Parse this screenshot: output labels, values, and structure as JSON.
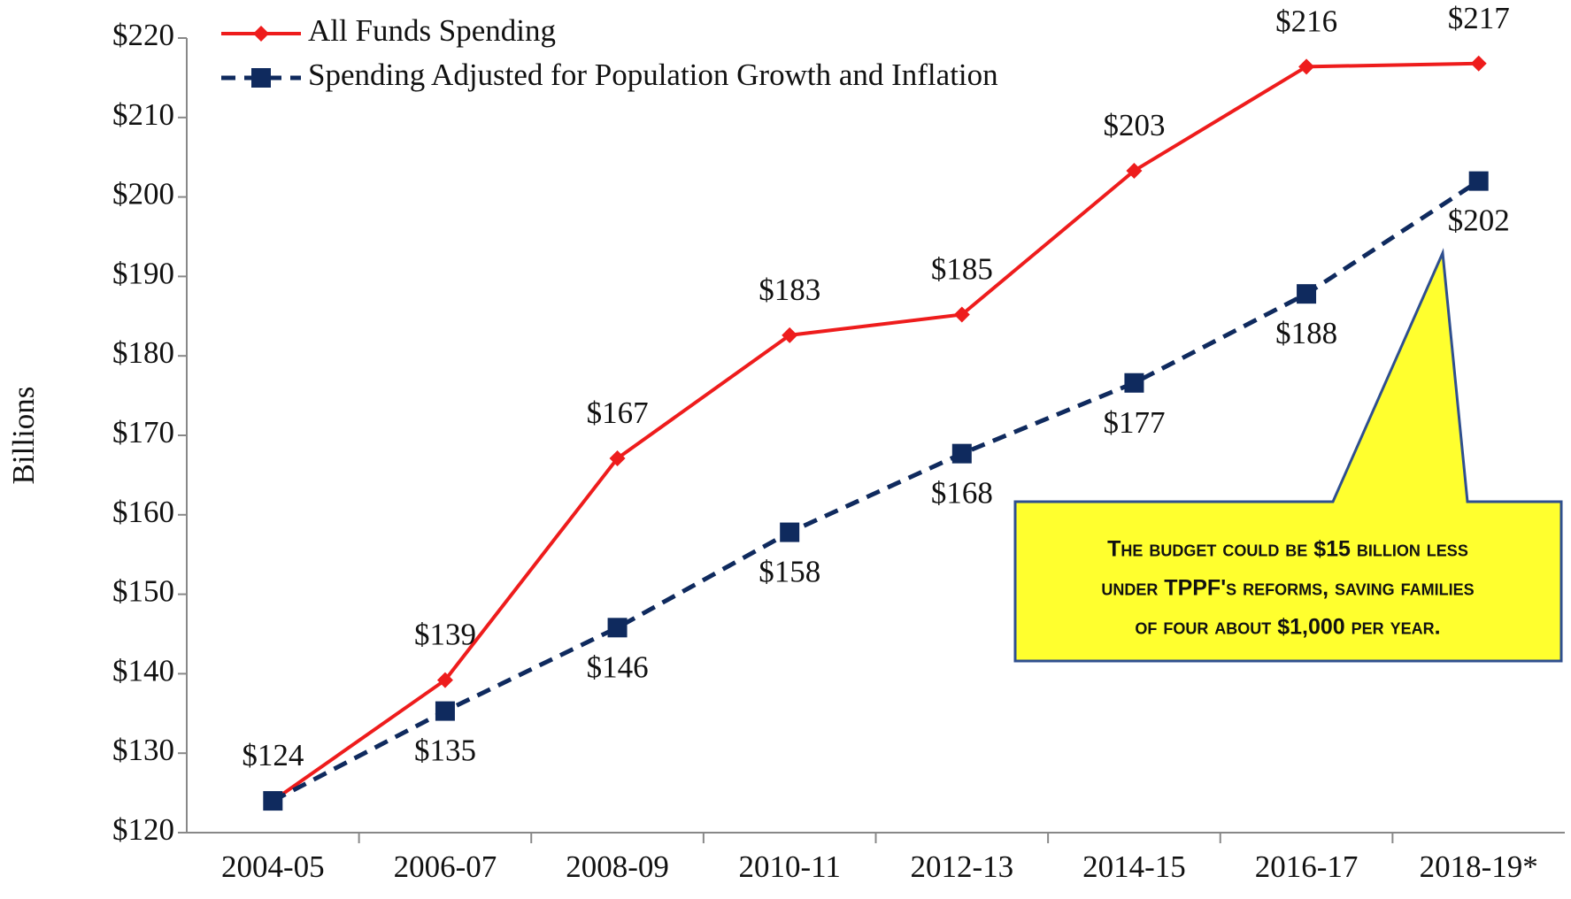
{
  "chart_data": {
    "type": "line",
    "y_label": "Billions",
    "categories": [
      "2004-05",
      "2006-07",
      "2008-09",
      "2010-11",
      "2012-13",
      "2014-15",
      "2016-17",
      "2018-19*"
    ],
    "series": [
      {
        "name": "All Funds Spending",
        "color": "#ee1c1c",
        "marker": "diamond",
        "dashed": false,
        "values": [
          124,
          139.2,
          167.1,
          182.6,
          185.2,
          203.3,
          216.4,
          216.8
        ],
        "value_labels": [
          "$124",
          "$139",
          "$167",
          "$183",
          "$185",
          "$203",
          "$216",
          "$217"
        ]
      },
      {
        "name": "Spending Adjusted for Population Growth and Inflation",
        "color": "#0f2a5e",
        "marker": "square",
        "dashed": true,
        "values": [
          124,
          135.3,
          145.8,
          157.8,
          167.7,
          176.6,
          187.8,
          202
        ],
        "value_labels": [
          null,
          "$135",
          "$146",
          "$158",
          "$168",
          "$177",
          "$188",
          "$202"
        ]
      }
    ],
    "ylim": [
      120,
      220
    ],
    "yticks": [
      {
        "value": 120,
        "label": "$120"
      },
      {
        "value": 130,
        "label": "$130"
      },
      {
        "value": 140,
        "label": "$140"
      },
      {
        "value": 150,
        "label": "$150"
      },
      {
        "value": 160,
        "label": "$160"
      },
      {
        "value": 170,
        "label": "$170"
      },
      {
        "value": 180,
        "label": "$180"
      },
      {
        "value": 190,
        "label": "$190"
      },
      {
        "value": 200,
        "label": "$200"
      },
      {
        "value": 210,
        "label": "$210"
      },
      {
        "value": 220,
        "label": "$220"
      }
    ],
    "legend": "top-left",
    "annotation": [
      "The budget could be $15 billion less",
      "under TPPF's reforms, saving families",
      "of four about $1,000 per year."
    ]
  }
}
